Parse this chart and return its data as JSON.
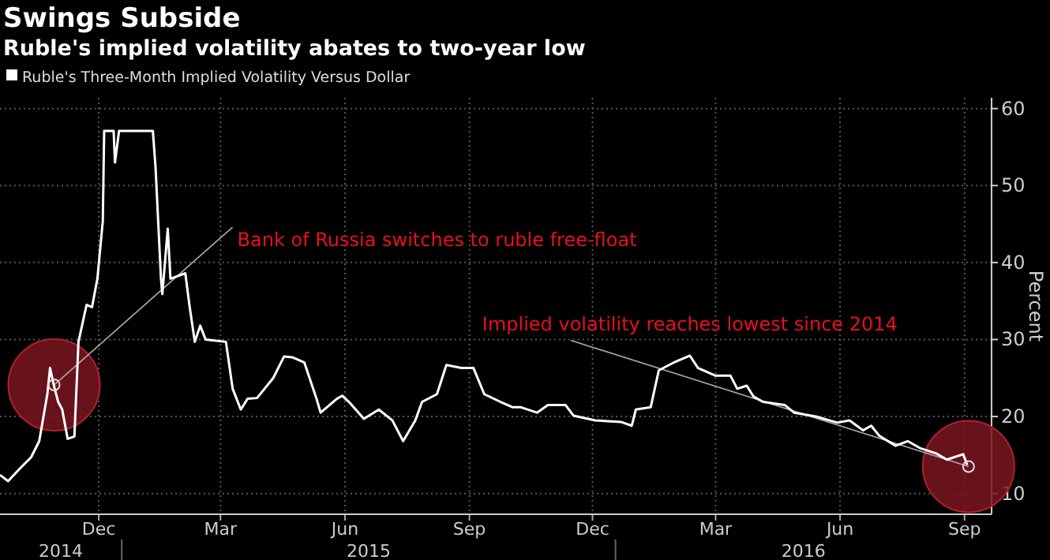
{
  "chart_data": {
    "type": "line",
    "title": "Swings Subside",
    "subtitle": "Ruble's implied volatility abates to two-year low",
    "ylabel": "Percent",
    "x": [
      "2014-10-03",
      "2014-10-09",
      "2014-10-18",
      "2014-10-26",
      "2014-11-01",
      "2014-11-07",
      "2014-11-09",
      "2014-11-12",
      "2014-11-15",
      "2014-11-18",
      "2014-11-22",
      "2014-11-27",
      "2014-11-30",
      "2014-12-06",
      "2014-12-10",
      "2014-12-14",
      "2014-12-18",
      "2014-12-19",
      "2014-12-26",
      "2014-12-27",
      "2014-12-30",
      "2015-01-24",
      "2015-01-26",
      "2015-01-30",
      "2015-01-31",
      "2015-02-04",
      "2015-02-06",
      "2015-02-17",
      "2015-02-20",
      "2015-02-24",
      "2015-02-28",
      "2015-03-04",
      "2015-03-19",
      "2015-03-24",
      "2015-03-30",
      "2015-04-04",
      "2015-04-11",
      "2015-04-23",
      "2015-05-01",
      "2015-05-07",
      "2015-05-16",
      "2015-05-25",
      "2015-05-28",
      "2015-06-09",
      "2015-06-13",
      "2015-06-19",
      "2015-06-29",
      "2015-07-10",
      "2015-07-20",
      "2015-07-28",
      "2015-08-06",
      "2015-08-11",
      "2015-08-22",
      "2015-08-29",
      "2015-09-09",
      "2015-09-18",
      "2015-09-26",
      "2015-10-08",
      "2015-10-17",
      "2015-10-23",
      "2015-11-04",
      "2015-11-12",
      "2015-11-25",
      "2015-12-01",
      "2015-12-17",
      "2016-01-05",
      "2016-01-13",
      "2016-01-16",
      "2016-01-27",
      "2016-02-02",
      "2016-02-13",
      "2016-02-25",
      "2016-03-02",
      "2016-03-15",
      "2016-03-26",
      "2016-03-31",
      "2016-04-07",
      "2016-04-12",
      "2016-04-19",
      "2016-05-05",
      "2016-05-12",
      "2016-05-28",
      "2016-06-13",
      "2016-06-22",
      "2016-07-02",
      "2016-07-08",
      "2016-07-14",
      "2016-07-26",
      "2016-08-04",
      "2016-08-13",
      "2016-08-25",
      "2016-09-02",
      "2016-09-14",
      "2016-09-17"
    ],
    "series": [
      {
        "name": "Ruble's Three-Month Implied Volatility Versus Dollar",
        "color": "#ffffff",
        "values": [
          12.4,
          11.6,
          13.3,
          14.7,
          16.8,
          22.9,
          26.3,
          23.9,
          21.9,
          20.9,
          17.1,
          17.4,
          29.7,
          34.5,
          34.2,
          37.9,
          45.4,
          57.1,
          57.1,
          53.0,
          57.1,
          57.1,
          52.3,
          37.9,
          35.9,
          44.4,
          37.9,
          38.6,
          34.5,
          29.7,
          31.8,
          30.0,
          29.7,
          23.6,
          20.9,
          22.3,
          22.4,
          25.0,
          27.8,
          27.7,
          27.0,
          22.3,
          20.5,
          22.3,
          22.7,
          21.7,
          19.7,
          20.9,
          19.5,
          16.8,
          19.5,
          21.9,
          22.9,
          26.7,
          26.3,
          26.3,
          22.9,
          21.9,
          21.2,
          21.2,
          20.5,
          21.5,
          21.5,
          20.1,
          19.5,
          19.3,
          18.8,
          20.9,
          21.2,
          26.0,
          27.0,
          27.9,
          26.3,
          25.3,
          25.3,
          23.6,
          24.0,
          22.6,
          21.9,
          21.5,
          20.5,
          20.0,
          19.2,
          19.5,
          18.2,
          18.8,
          17.5,
          16.2,
          16.8,
          15.9,
          15.2,
          14.4,
          15.1,
          13.7
        ]
      }
    ],
    "xlim": [
      "2014-10-03",
      "2016-10-05"
    ],
    "xticks": [
      {
        "value": "2014-12-15",
        "label": "Dec"
      },
      {
        "value": "2015-03-15",
        "label": "Mar"
      },
      {
        "value": "2015-06-15",
        "label": "Jun"
      },
      {
        "value": "2015-09-15",
        "label": "Sep"
      },
      {
        "value": "2015-12-15",
        "label": "Dec"
      },
      {
        "value": "2016-03-15",
        "label": "Mar"
      },
      {
        "value": "2016-06-15",
        "label": "Jun"
      },
      {
        "value": "2016-09-15",
        "label": "Sep"
      }
    ],
    "ylim": [
      7.3,
      61.4
    ],
    "yticks": [
      10,
      20,
      30,
      40,
      50,
      60
    ],
    "grid": true,
    "legend": "top left",
    "annotations": [
      {
        "text": "Bank of Russia switches to ruble free-float",
        "x": "2014-11-12",
        "y": 24.1
      },
      {
        "text": "Implied volatility reaches lowest since 2014",
        "x": "2016-09-18",
        "y": 13.5
      },
      "2014",
      "2015",
      "2016"
    ]
  }
}
